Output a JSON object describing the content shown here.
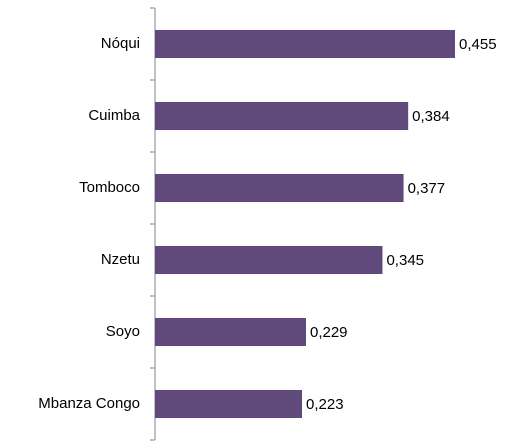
{
  "chart_data": {
    "type": "bar",
    "orientation": "horizontal",
    "categories": [
      "Nóqui",
      "Cuimba",
      "Tomboco",
      "Nzetu",
      "Soyo",
      "Mbanza Congo"
    ],
    "values": [
      0.455,
      0.384,
      0.377,
      0.345,
      0.229,
      0.223
    ],
    "value_labels": [
      "0,455",
      "0,384",
      "0,377",
      "0,345",
      "0,229",
      "0,223"
    ],
    "color": "#5f4a7b"
  }
}
